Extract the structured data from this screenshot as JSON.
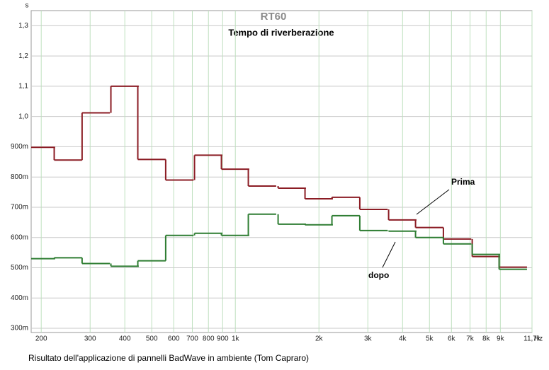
{
  "chart_data": {
    "type": "step",
    "title": "RT60",
    "subtitle": "Tempo di riverberazione",
    "caption": "Risultato  dell'applicazione di pannelli BadWave in ambiente (Tom Capraro)",
    "x_unit": "Hz",
    "y_unit": "s",
    "x": [
      200,
      250,
      315,
      400,
      500,
      630,
      800,
      1000,
      1250,
      1600,
      2000,
      2500,
      3150,
      4000,
      5000,
      6300,
      8000,
      10000
    ],
    "series": [
      {
        "name": "Prima",
        "color": "#8b1c24",
        "values": [
          0.898,
          0.856,
          1.012,
          1.1,
          0.858,
          0.79,
          0.872,
          0.826,
          0.77,
          0.763,
          0.728,
          0.733,
          0.693,
          0.658,
          0.633,
          0.595,
          0.537,
          0.502
        ]
      },
      {
        "name": "dopo",
        "color": "#2e7d32",
        "values": [
          0.53,
          0.533,
          0.514,
          0.505,
          0.523,
          0.607,
          0.614,
          0.607,
          0.677,
          0.644,
          0.642,
          0.672,
          0.623,
          0.621,
          0.6,
          0.579,
          0.544,
          0.495
        ]
      }
    ],
    "xscale": "log",
    "xlim": [
      184,
      11700
    ],
    "ylim": [
      0.286,
      1.35
    ],
    "xticks": [
      200,
      300,
      400,
      500,
      600,
      700,
      800,
      900,
      {
        "value": 1000,
        "label": "1k"
      },
      {
        "value": 2000,
        "label": "2k"
      },
      {
        "value": 3000,
        "label": "3k"
      },
      {
        "value": 4000,
        "label": "4k"
      },
      {
        "value": 5000,
        "label": "5k"
      },
      {
        "value": 6000,
        "label": "6k"
      },
      {
        "value": 7000,
        "label": "7k"
      },
      {
        "value": 8000,
        "label": "8k"
      },
      {
        "value": 9000,
        "label": "9k"
      },
      {
        "value": 11700,
        "label": "11,7k"
      }
    ],
    "yticks": [
      {
        "value": 0.3,
        "label": "300m"
      },
      {
        "value": 0.4,
        "label": "400m"
      },
      {
        "value": 0.5,
        "label": "500m"
      },
      {
        "value": 0.6,
        "label": "600m"
      },
      {
        "value": 0.7,
        "label": "700m"
      },
      {
        "value": 0.8,
        "label": "800m"
      },
      {
        "value": 0.9,
        "label": "900m"
      },
      {
        "value": 1.0,
        "label": "1,0"
      },
      {
        "value": 1.1,
        "label": "1,1"
      },
      {
        "value": 1.2,
        "label": "1,2"
      },
      {
        "value": 1.3,
        "label": "1,3"
      }
    ],
    "grid": true
  }
}
